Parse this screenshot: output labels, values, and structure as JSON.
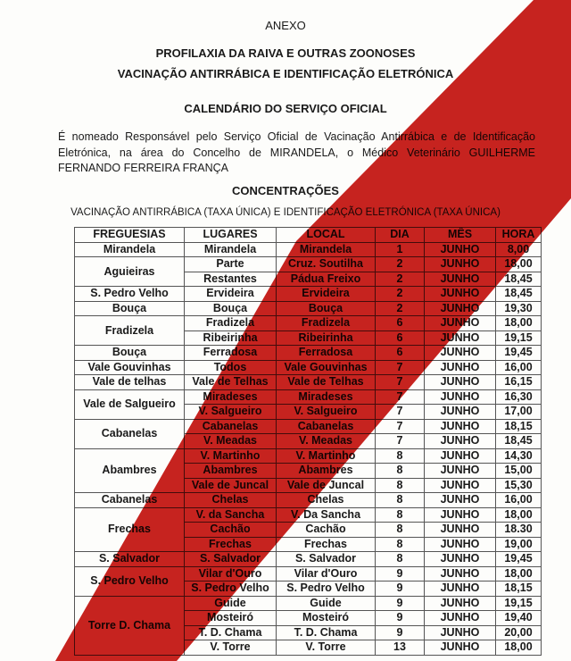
{
  "header": {
    "annex": "ANEXO",
    "title1": "PROFILAXIA DA RAIVA E OUTRAS ZOONOSES",
    "title2": "VACINAÇÃO ANTIRRÁBICA E IDENTIFICAÇÃO ELETRÓNICA",
    "title3": "CALENDÁRIO DO SERVIÇO OFICIAL",
    "paragraph": "É nomeado Responsável pelo Serviço Oficial de Vacinação Antirrábica e de Identificação Eletrónica, na área do Concelho de MIRANDELA, o Médico Veterinário GUILHERME FERNANDO FERREIRA FRANÇA",
    "section": "CONCENTRAÇÕES",
    "subtitle": "VACINAÇÃO ANTIRRÁBICA (TAXA ÚNICA) E IDENTIFICAÇÃO ELETRÓNICA (TAXA ÚNICA)"
  },
  "colors": {
    "stripe": "#c8231f"
  },
  "table": {
    "columns": [
      "FREGUESIAS",
      "LUGARES",
      "LOCAL",
      "DIA",
      "MÊS",
      "HORA"
    ],
    "groups": [
      {
        "freguesia": "Mirandela",
        "rows": [
          [
            "Mirandela",
            "Mirandela",
            "1",
            "JUNHO",
            "8,00"
          ]
        ]
      },
      {
        "freguesia": "Aguieiras",
        "rows": [
          [
            "Parte",
            "Cruz. Soutilha",
            "2",
            "JUNHO",
            "18,00"
          ],
          [
            "Restantes",
            "Pádua Freixo",
            "2",
            "JUNHO",
            "18,45"
          ]
        ]
      },
      {
        "freguesia": "S. Pedro Velho",
        "rows": [
          [
            "Ervideira",
            "Ervideira",
            "2",
            "JUNHO",
            "18,45"
          ]
        ]
      },
      {
        "freguesia": "Bouça",
        "rows": [
          [
            "Bouça",
            "Bouça",
            "2",
            "JUNHO",
            "19,30"
          ]
        ]
      },
      {
        "freguesia": "Fradizela",
        "rows": [
          [
            "Fradizela",
            "Fradizela",
            "6",
            "JUNHO",
            "18,00"
          ],
          [
            "Ribeirinha",
            "Ribeirinha",
            "6",
            "JUNHO",
            "19,15"
          ]
        ]
      },
      {
        "freguesia": "Bouça",
        "rows": [
          [
            "Ferradosa",
            "Ferradosa",
            "6",
            "JUNHO",
            "19,45"
          ]
        ]
      },
      {
        "freguesia": "Vale Gouvinhas",
        "rows": [
          [
            "Todos",
            "Vale Gouvinhas",
            "7",
            "JUNHO",
            "16,00"
          ]
        ]
      },
      {
        "freguesia": "Vale de telhas",
        "rows": [
          [
            "Vale de Telhas",
            "Vale de Telhas",
            "7",
            "JUNHO",
            "16,15"
          ]
        ]
      },
      {
        "freguesia": "Vale de Salgueiro",
        "rows": [
          [
            "Miradeses",
            "Miradeses",
            "7",
            "JUNHO",
            "16,30"
          ],
          [
            "V. Salgueiro",
            "V. Salgueiro",
            "7",
            "JUNHO",
            "17,00"
          ]
        ]
      },
      {
        "freguesia": "Cabanelas",
        "rows": [
          [
            "Cabanelas",
            "Cabanelas",
            "7",
            "JUNHO",
            "18,15"
          ],
          [
            "V. Meadas",
            "V. Meadas",
            "7",
            "JUNHO",
            "18,45"
          ]
        ]
      },
      {
        "freguesia": "Abambres",
        "rows": [
          [
            "V. Martinho",
            "V. Martinho",
            "8",
            "JUNHO",
            "14,30"
          ],
          [
            "Abambres",
            "Abambres",
            "8",
            "JUNHO",
            "15,00"
          ],
          [
            "Vale de Juncal",
            "Vale de Juncal",
            "8",
            "JUNHO",
            "15,30"
          ]
        ]
      },
      {
        "freguesia": "Cabanelas",
        "rows": [
          [
            "Chelas",
            "Chelas",
            "8",
            "JUNHO",
            "16,00"
          ]
        ]
      },
      {
        "freguesia": "Frechas",
        "rows": [
          [
            "V. da Sancha",
            "V. Da Sancha",
            "8",
            "JUNHO",
            "18,00"
          ],
          [
            "Cachão",
            "Cachão",
            "8",
            "JUNHO",
            "18.30"
          ],
          [
            "Frechas",
            "Frechas",
            "8",
            "JUNHO",
            "19,00"
          ]
        ]
      },
      {
        "freguesia": "S. Salvador",
        "rows": [
          [
            "S. Salvador",
            "S. Salvador",
            "8",
            "JUNHO",
            "19,45"
          ]
        ]
      },
      {
        "freguesia": "S. Pedro Velho",
        "rows": [
          [
            "Vilar d'Ouro",
            "Vilar d'Ouro",
            "9",
            "JUNHO",
            "18,00"
          ],
          [
            "S. Pedro Velho",
            "S. Pedro Velho",
            "9",
            "JUNHO",
            "18,15"
          ]
        ]
      },
      {
        "freguesia": "Torre D. Chama",
        "rows": [
          [
            "Guide",
            "Guide",
            "9",
            "JUNHO",
            "19,15"
          ],
          [
            "Mosteiró",
            "Mosteiró",
            "9",
            "JUNHO",
            "19,40"
          ],
          [
            "T. D. Chama",
            "T. D. Chama",
            "9",
            "JUNHO",
            "20,00"
          ],
          [
            "V. Torre",
            "V. Torre",
            "13",
            "JUNHO",
            "18,00"
          ]
        ]
      }
    ]
  }
}
